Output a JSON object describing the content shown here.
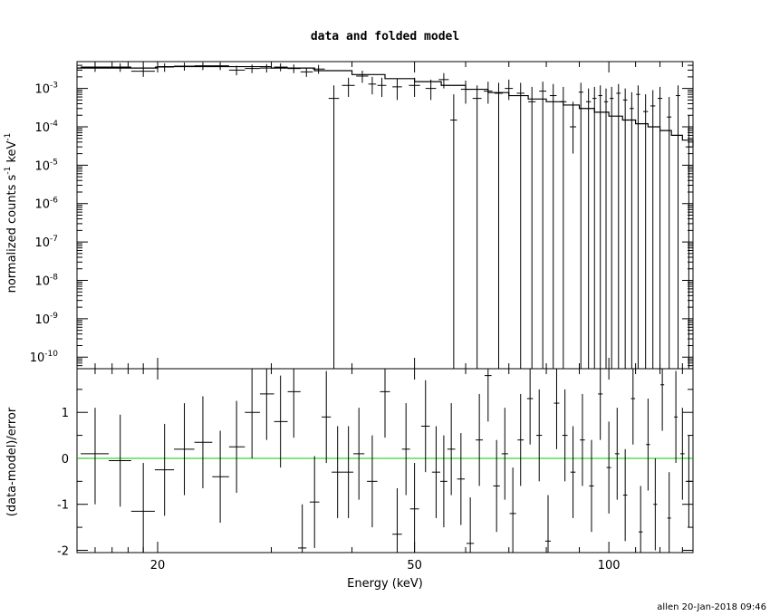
{
  "chart_data": [
    {
      "type": "scatter",
      "title": "data and folded model",
      "ylabel_parts": [
        "normalized counts s",
        "-1",
        " keV",
        "-1"
      ],
      "xscale": "log",
      "yscale": "log",
      "xlim": [
        15,
        135
      ],
      "ylim": [
        5e-11,
        0.005
      ],
      "y_ticks": [
        {
          "v": 0.001,
          "m": "10",
          "e": "-3"
        },
        {
          "v": 0.0001,
          "m": "10",
          "e": "-4"
        },
        {
          "v": 1e-05,
          "m": "10",
          "e": "-5"
        },
        {
          "v": 1e-06,
          "m": "10",
          "e": "-6"
        },
        {
          "v": 1e-07,
          "m": "10",
          "e": "-7"
        },
        {
          "v": 1e-08,
          "m": "10",
          "e": "-8"
        },
        {
          "v": 1e-09,
          "m": "10",
          "e": "-9"
        },
        {
          "v": 1e-10,
          "m": "10",
          "e": "-10"
        }
      ],
      "points": [
        [
          16.0,
          0.0036,
          15.2,
          16.8,
          0.0027,
          0.0045
        ],
        [
          17.5,
          0.0036,
          16.8,
          18.2,
          0.0027,
          0.0045
        ],
        [
          19.0,
          0.0028,
          18.2,
          19.8,
          0.002,
          0.0037
        ],
        [
          20.5,
          0.0036,
          19.8,
          21.2,
          0.0027,
          0.0045
        ],
        [
          22.0,
          0.0038,
          21.2,
          22.8,
          0.0029,
          0.0047
        ],
        [
          23.5,
          0.0039,
          22.8,
          24.3,
          0.003,
          0.0048
        ],
        [
          25.0,
          0.0039,
          24.3,
          25.8,
          0.003,
          0.0048
        ],
        [
          26.5,
          0.003,
          25.8,
          27.3,
          0.0022,
          0.0039
        ],
        [
          28.0,
          0.0033,
          27.3,
          28.8,
          0.0025,
          0.0042
        ],
        [
          29.5,
          0.0034,
          28.8,
          30.3,
          0.0026,
          0.0043
        ],
        [
          31.0,
          0.0036,
          30.3,
          31.8,
          0.0028,
          0.0045
        ],
        [
          32.5,
          0.0033,
          31.8,
          33.3,
          0.0025,
          0.0042
        ],
        [
          34.0,
          0.0027,
          33.3,
          34.8,
          0.002,
          0.0035
        ],
        [
          35.5,
          0.0032,
          34.8,
          36.3,
          0.0024,
          0.0041
        ],
        [
          37.5,
          0.00055,
          36.8,
          38.2,
          5e-11,
          0.0012
        ],
        [
          39.5,
          0.0012,
          38.6,
          40.4,
          0.0006,
          0.0019
        ],
        [
          41.5,
          0.0021,
          40.6,
          42.4,
          0.0014,
          0.0029
        ],
        [
          43.0,
          0.0013,
          42.4,
          43.6,
          0.0007,
          0.002
        ],
        [
          44.5,
          0.0012,
          43.8,
          45.2,
          0.0006,
          0.0019
        ],
        [
          47.0,
          0.0011,
          46.2,
          47.8,
          0.0005,
          0.0018
        ],
        [
          50.0,
          0.0012,
          49.0,
          51.0,
          0.0006,
          0.0019
        ],
        [
          53.0,
          0.001,
          52.0,
          54.0,
          0.0005,
          0.0017
        ],
        [
          55.5,
          0.0017,
          54.5,
          56.5,
          0.001,
          0.0025
        ],
        [
          57.5,
          0.00015,
          56.8,
          58.2,
          5e-11,
          0.0007
        ],
        [
          60.0,
          0.00095,
          59.0,
          61.0,
          0.0004,
          0.0016
        ],
        [
          62.5,
          0.00055,
          61.5,
          63.5,
          5e-11,
          0.0012
        ],
        [
          65.0,
          0.00085,
          64.0,
          66.0,
          0.0004,
          0.0015
        ],
        [
          67.5,
          0.00075,
          66.5,
          68.5,
          5e-11,
          0.0014
        ],
        [
          70.0,
          0.001,
          69.0,
          71.0,
          0.0005,
          0.0017
        ],
        [
          73.0,
          0.00075,
          72.0,
          74.0,
          5e-11,
          0.0014
        ],
        [
          76.0,
          0.00045,
          75.0,
          77.0,
          5e-11,
          0.0011
        ],
        [
          79.0,
          0.00085,
          78.0,
          80.0,
          5e-11,
          0.0015
        ],
        [
          82.0,
          0.00065,
          81.0,
          83.0,
          5e-11,
          0.0013
        ],
        [
          85.0,
          0.00045,
          84.0,
          86.0,
          5e-11,
          0.0011
        ],
        [
          88.0,
          0.0001,
          87.0,
          89.0,
          2e-05,
          0.00045
        ],
        [
          90.5,
          0.0008,
          89.8,
          91.3,
          5e-11,
          0.0014
        ],
        [
          93.0,
          0.00045,
          92.2,
          93.8,
          5e-11,
          0.001
        ],
        [
          95.0,
          0.00055,
          94.3,
          95.7,
          5e-11,
          0.0011
        ],
        [
          97.0,
          0.00065,
          96.3,
          97.7,
          5e-11,
          0.0012
        ],
        [
          99.0,
          0.00045,
          98.3,
          99.7,
          5e-11,
          0.001
        ],
        [
          101.0,
          0.00055,
          100.3,
          101.7,
          5e-11,
          0.0011
        ],
        [
          103.5,
          0.00075,
          102.7,
          104.3,
          5e-11,
          0.0013
        ],
        [
          106.0,
          0.0005,
          105.2,
          106.8,
          5e-11,
          0.001
        ],
        [
          108.5,
          0.0003,
          107.7,
          109.3,
          5e-11,
          0.0008
        ],
        [
          111.0,
          0.0007,
          110.2,
          111.8,
          5e-11,
          0.0012
        ],
        [
          114.0,
          0.00025,
          113.0,
          115.0,
          5e-11,
          0.0007
        ],
        [
          117.0,
          0.00035,
          116.0,
          118.0,
          5e-11,
          0.0009
        ],
        [
          120.0,
          0.00055,
          119.0,
          121.0,
          5e-11,
          0.0011
        ],
        [
          124.0,
          0.00018,
          123.0,
          125.0,
          5e-11,
          0.0006
        ],
        [
          128.0,
          0.00065,
          127.0,
          129.0,
          5e-11,
          0.0012
        ],
        [
          133.0,
          3e-05,
          131.5,
          134.5,
          5e-11,
          0.0002
        ]
      ],
      "model": [
        [
          15,
          0.0034
        ],
        [
          20,
          0.0037
        ],
        [
          25,
          0.0037
        ],
        [
          30,
          0.0034
        ],
        [
          35,
          0.0029
        ],
        [
          40,
          0.0023
        ],
        [
          45,
          0.0018
        ],
        [
          50,
          0.0015
        ],
        [
          55,
          0.0012
        ],
        [
          60,
          0.00095
        ],
        [
          65,
          0.00078
        ],
        [
          70,
          0.00065
        ],
        [
          75,
          0.00053
        ],
        [
          80,
          0.00045
        ],
        [
          85,
          0.00037
        ],
        [
          90,
          0.0003
        ],
        [
          95,
          0.00024
        ],
        [
          100,
          0.00019
        ],
        [
          105,
          0.00015
        ],
        [
          110,
          0.00012
        ],
        [
          115,
          0.0001
        ],
        [
          120,
          8e-05
        ],
        [
          125,
          6e-05
        ],
        [
          130,
          4.5e-05
        ],
        [
          135,
          3e-05
        ]
      ]
    },
    {
      "type": "scatter",
      "xlabel": "Energy (keV)",
      "ylabel": "(data-model)/error",
      "xscale": "log",
      "xlim": [
        15,
        135
      ],
      "ylim": [
        -2.05,
        1.95
      ],
      "y_ticks": [
        "1",
        "0",
        "-1",
        "-2"
      ],
      "x_ticks": [
        "20",
        "50",
        "100"
      ],
      "zero_line_color": "#00cc00",
      "points": [
        [
          16.0,
          0.1,
          15.2,
          16.8,
          -1.0,
          1.1
        ],
        [
          17.5,
          -0.05,
          16.8,
          18.2,
          -1.05,
          0.95
        ],
        [
          19.0,
          -1.15,
          18.2,
          19.8,
          -2.05,
          -0.1
        ],
        [
          20.5,
          -0.25,
          19.8,
          21.2,
          -1.25,
          0.75
        ],
        [
          22.0,
          0.2,
          21.2,
          22.8,
          -0.8,
          1.2
        ],
        [
          23.5,
          0.35,
          22.8,
          24.3,
          -0.65,
          1.35
        ],
        [
          25.0,
          -0.4,
          24.3,
          25.8,
          -1.4,
          0.6
        ],
        [
          26.5,
          0.25,
          25.8,
          27.3,
          -0.75,
          1.25
        ],
        [
          28.0,
          1.0,
          27.3,
          28.8,
          0.0,
          1.95
        ],
        [
          29.5,
          1.4,
          28.8,
          30.3,
          0.4,
          1.95
        ],
        [
          31.0,
          0.8,
          30.3,
          31.8,
          -0.2,
          1.8
        ],
        [
          32.5,
          1.45,
          31.8,
          33.3,
          0.45,
          1.95
        ],
        [
          33.5,
          -1.95,
          33.0,
          34.0,
          -2.05,
          -1.0
        ],
        [
          35.0,
          -0.95,
          34.4,
          35.6,
          -1.95,
          0.05
        ],
        [
          36.5,
          0.9,
          35.9,
          37.1,
          -0.1,
          1.9
        ],
        [
          38.0,
          -0.3,
          37.2,
          38.8,
          -1.3,
          0.7
        ],
        [
          39.5,
          -0.3,
          38.8,
          40.2,
          -1.3,
          0.7
        ],
        [
          41.0,
          0.1,
          40.2,
          41.8,
          -0.9,
          1.1
        ],
        [
          43.0,
          -0.5,
          42.2,
          43.8,
          -1.5,
          0.5
        ],
        [
          45.0,
          1.45,
          44.2,
          45.8,
          0.45,
          1.95
        ],
        [
          47.0,
          -1.65,
          46.2,
          47.8,
          -2.05,
          -0.65
        ],
        [
          48.5,
          0.2,
          47.8,
          49.2,
          -0.8,
          1.2
        ],
        [
          50.0,
          -1.1,
          49.2,
          50.8,
          -2.05,
          -0.1
        ],
        [
          52.0,
          0.7,
          51.2,
          52.8,
          -0.3,
          1.7
        ],
        [
          54.0,
          -0.3,
          53.2,
          54.8,
          -1.3,
          0.7
        ],
        [
          55.5,
          -0.5,
          54.8,
          56.2,
          -1.5,
          0.5
        ],
        [
          57.0,
          0.2,
          56.2,
          57.8,
          -0.8,
          1.2
        ],
        [
          59.0,
          -0.45,
          58.2,
          59.8,
          -1.45,
          0.55
        ],
        [
          61.0,
          -1.85,
          60.2,
          61.8,
          -2.05,
          -0.85
        ],
        [
          63.0,
          0.4,
          62.2,
          63.8,
          -0.6,
          1.4
        ],
        [
          65.0,
          1.8,
          64.2,
          65.8,
          0.8,
          1.95
        ],
        [
          67.0,
          -0.6,
          66.2,
          67.8,
          -1.6,
          0.4
        ],
        [
          69.0,
          0.1,
          68.2,
          69.8,
          -0.9,
          1.1
        ],
        [
          71.0,
          -1.2,
          70.2,
          71.8,
          -2.05,
          -0.2
        ],
        [
          73.0,
          0.4,
          72.2,
          73.8,
          -0.6,
          1.4
        ],
        [
          75.5,
          1.3,
          74.7,
          76.3,
          0.3,
          1.95
        ],
        [
          78.0,
          0.5,
          77.2,
          78.8,
          -0.5,
          1.5
        ],
        [
          80.5,
          -1.8,
          79.7,
          81.3,
          -2.05,
          -0.8
        ],
        [
          83.0,
          1.2,
          82.2,
          83.8,
          0.2,
          1.95
        ],
        [
          85.5,
          0.5,
          84.7,
          86.3,
          -0.5,
          1.5
        ],
        [
          88.0,
          -0.3,
          87.2,
          88.8,
          -1.3,
          0.7
        ],
        [
          91.0,
          0.4,
          90.2,
          91.8,
          -0.6,
          1.4
        ],
        [
          94.0,
          -0.6,
          93.2,
          94.8,
          -1.6,
          0.4
        ],
        [
          97.0,
          1.4,
          96.2,
          97.8,
          0.4,
          1.95
        ],
        [
          100.0,
          -0.2,
          99.2,
          100.8,
          -1.2,
          0.8
        ],
        [
          103.0,
          0.1,
          102.2,
          103.8,
          -0.9,
          1.1
        ],
        [
          106.0,
          -0.8,
          105.2,
          106.8,
          -1.8,
          0.2
        ],
        [
          109.0,
          1.3,
          108.2,
          109.8,
          0.3,
          1.95
        ],
        [
          112.0,
          -1.6,
          111.2,
          112.8,
          -2.05,
          -0.6
        ],
        [
          115.0,
          0.3,
          114.2,
          115.8,
          -0.7,
          1.3
        ],
        [
          118.0,
          -1.0,
          117.2,
          118.8,
          -2.0,
          0.0
        ],
        [
          121.0,
          1.6,
          120.2,
          121.8,
          0.6,
          1.95
        ],
        [
          124.0,
          -1.3,
          123.2,
          124.8,
          -2.05,
          -0.3
        ],
        [
          127.0,
          0.9,
          126.2,
          127.8,
          -0.1,
          1.9
        ],
        [
          130.0,
          0.1,
          129.0,
          131.0,
          -0.9,
          1.1
        ],
        [
          133.0,
          -0.5,
          131.5,
          134.5,
          -1.5,
          0.5
        ]
      ]
    }
  ],
  "footer": "allen 20-Jan-2018 09:46"
}
